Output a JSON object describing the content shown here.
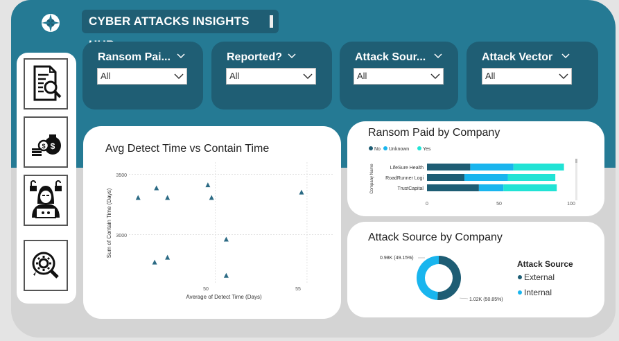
{
  "header": {
    "title": "CYBER ATTACKS INSIGHTS HUB"
  },
  "sidebar": {
    "items": [
      {
        "icon": "report-search-icon"
      },
      {
        "icon": "money-bags-icon"
      },
      {
        "icon": "hacker-icon"
      },
      {
        "icon": "gear-search-icon"
      }
    ]
  },
  "filters": [
    {
      "label": "Ransom Pai...",
      "value": "All"
    },
    {
      "label": "Reported?",
      "value": "All"
    },
    {
      "label": "Attack Sour...",
      "value": "All"
    },
    {
      "label": "Attack Vector",
      "value": "All"
    }
  ],
  "scatter_card": {
    "title": "Avg Detect Time vs Contain Time",
    "xlabel": "Average of Detect Time (Days)",
    "ylabel": "Sum of Contain Time (Days)"
  },
  "ransom_card": {
    "title": "Ransom Paid by Company",
    "axis_title": "Company Name",
    "legend": [
      "No",
      "Unknown",
      "Yes"
    ]
  },
  "source_card": {
    "title": "Attack Source by Company",
    "legend_title": "Attack Source",
    "legend": [
      "External",
      "Internal"
    ],
    "label_internal": "0.98K (49.15%)",
    "label_external": "1.02K (50.85%)"
  },
  "colors": {
    "teal": "#257a94",
    "dark_teal": "#1f5e74",
    "no": "#1e5d74",
    "unknown": "#19b5ee",
    "yes": "#21e3d5"
  },
  "chart_data": [
    {
      "type": "scatter",
      "title": "Avg Detect Time vs Contain Time",
      "xlabel": "Average of Detect Time (Days)",
      "ylabel": "Sum of Contain Time (Days)",
      "xticks": [
        "50",
        "55"
      ],
      "yticks": [
        "3500",
        "3000"
      ],
      "xlim": [
        45.3,
        56.4
      ],
      "ylim": [
        2590,
        3600
      ],
      "points": [
        {
          "x": 45.8,
          "y": 3305
        },
        {
          "x": 46.8,
          "y": 3385
        },
        {
          "x": 47.4,
          "y": 3305
        },
        {
          "x": 49.6,
          "y": 3410
        },
        {
          "x": 49.8,
          "y": 3305
        },
        {
          "x": 54.7,
          "y": 3350
        },
        {
          "x": 50.6,
          "y": 2960
        },
        {
          "x": 46.7,
          "y": 2770
        },
        {
          "x": 47.4,
          "y": 2810
        },
        {
          "x": 50.6,
          "y": 2660
        }
      ]
    },
    {
      "type": "bar",
      "orientation": "horizontal",
      "stacked": true,
      "title": "Ransom Paid by Company",
      "ylabel": "Company Name",
      "categories": [
        "LifeSure Health",
        "RoadRunner Logi",
        "TrustCapital"
      ],
      "series": [
        {
          "name": "No",
          "values": [
            30,
            26,
            36
          ]
        },
        {
          "name": "Unknown",
          "values": [
            30,
            30,
            17
          ]
        },
        {
          "name": "Yes",
          "values": [
            35,
            33,
            37
          ]
        }
      ],
      "xticks": [
        "0",
        "50",
        "100"
      ],
      "xlim": [
        0,
        100
      ]
    },
    {
      "type": "pie",
      "donut": true,
      "title": "Attack Source by Company",
      "legend_title": "Attack Source",
      "slices": [
        {
          "name": "External",
          "value": 1.02,
          "label": "1.02K (50.85%)"
        },
        {
          "name": "Internal",
          "value": 0.98,
          "label": "0.98K (49.15%)"
        }
      ]
    }
  ]
}
